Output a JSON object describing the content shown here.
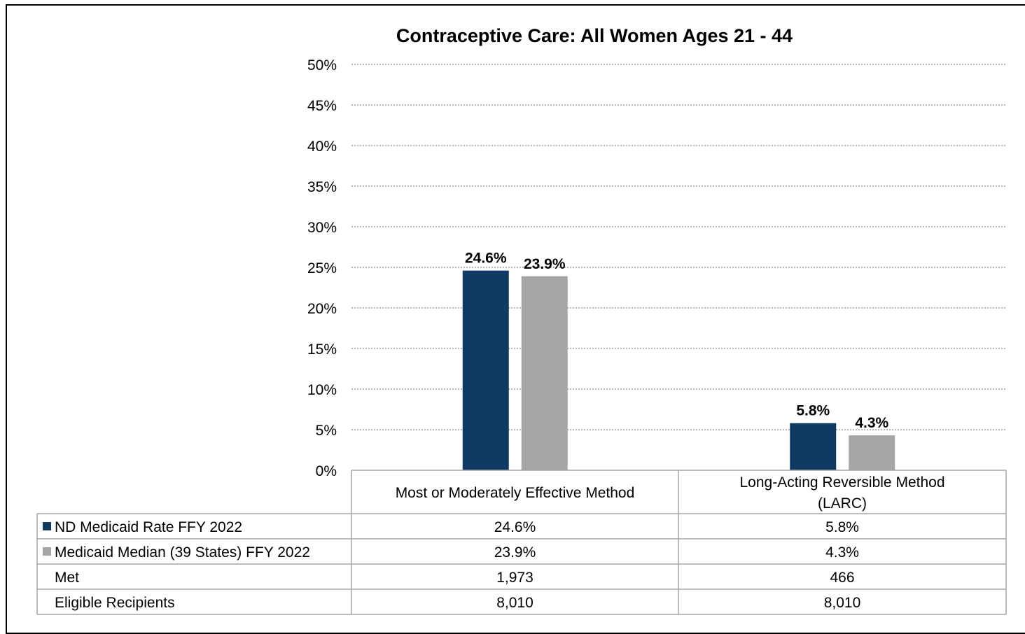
{
  "chart_data": {
    "type": "bar",
    "title": "Contraceptive Care: All Women Ages 21 - 44",
    "categories": [
      "Most or Moderately Effective Method",
      "Long-Acting Reversible Method (LARC)"
    ],
    "category_lines": [
      [
        "Most or Moderately Effective Method"
      ],
      [
        "Long-Acting Reversible Method",
        "(LARC)"
      ]
    ],
    "series": [
      {
        "name": "ND Medicaid Rate FFY 2022",
        "values": [
          24.6,
          5.8
        ],
        "labels": [
          "24.6%",
          "5.8%"
        ],
        "color": "#0f3a63"
      },
      {
        "name": "Medicaid Median (39 States) FFY 2022",
        "values": [
          23.9,
          4.3
        ],
        "labels": [
          "23.9%",
          "4.3%"
        ],
        "color": "#a6a6a6"
      }
    ],
    "ylim": [
      0,
      50
    ],
    "yticks": [
      "0%",
      "5%",
      "10%",
      "15%",
      "20%",
      "25%",
      "30%",
      "35%",
      "40%",
      "45%",
      "50%"
    ],
    "grid": true,
    "legend": "data table",
    "table_rows": [
      {
        "label": "ND Medicaid Rate FFY 2022",
        "series_index": 0,
        "cells": [
          "24.6%",
          "5.8%"
        ]
      },
      {
        "label": "Medicaid Median (39 States) FFY 2022",
        "series_index": 1,
        "cells": [
          "23.9%",
          "4.3%"
        ]
      },
      {
        "label": "Met",
        "cells": [
          "1,973",
          "466"
        ]
      },
      {
        "label": "Eligible Recipients",
        "cells": [
          "8,010",
          "8,010"
        ]
      }
    ]
  }
}
